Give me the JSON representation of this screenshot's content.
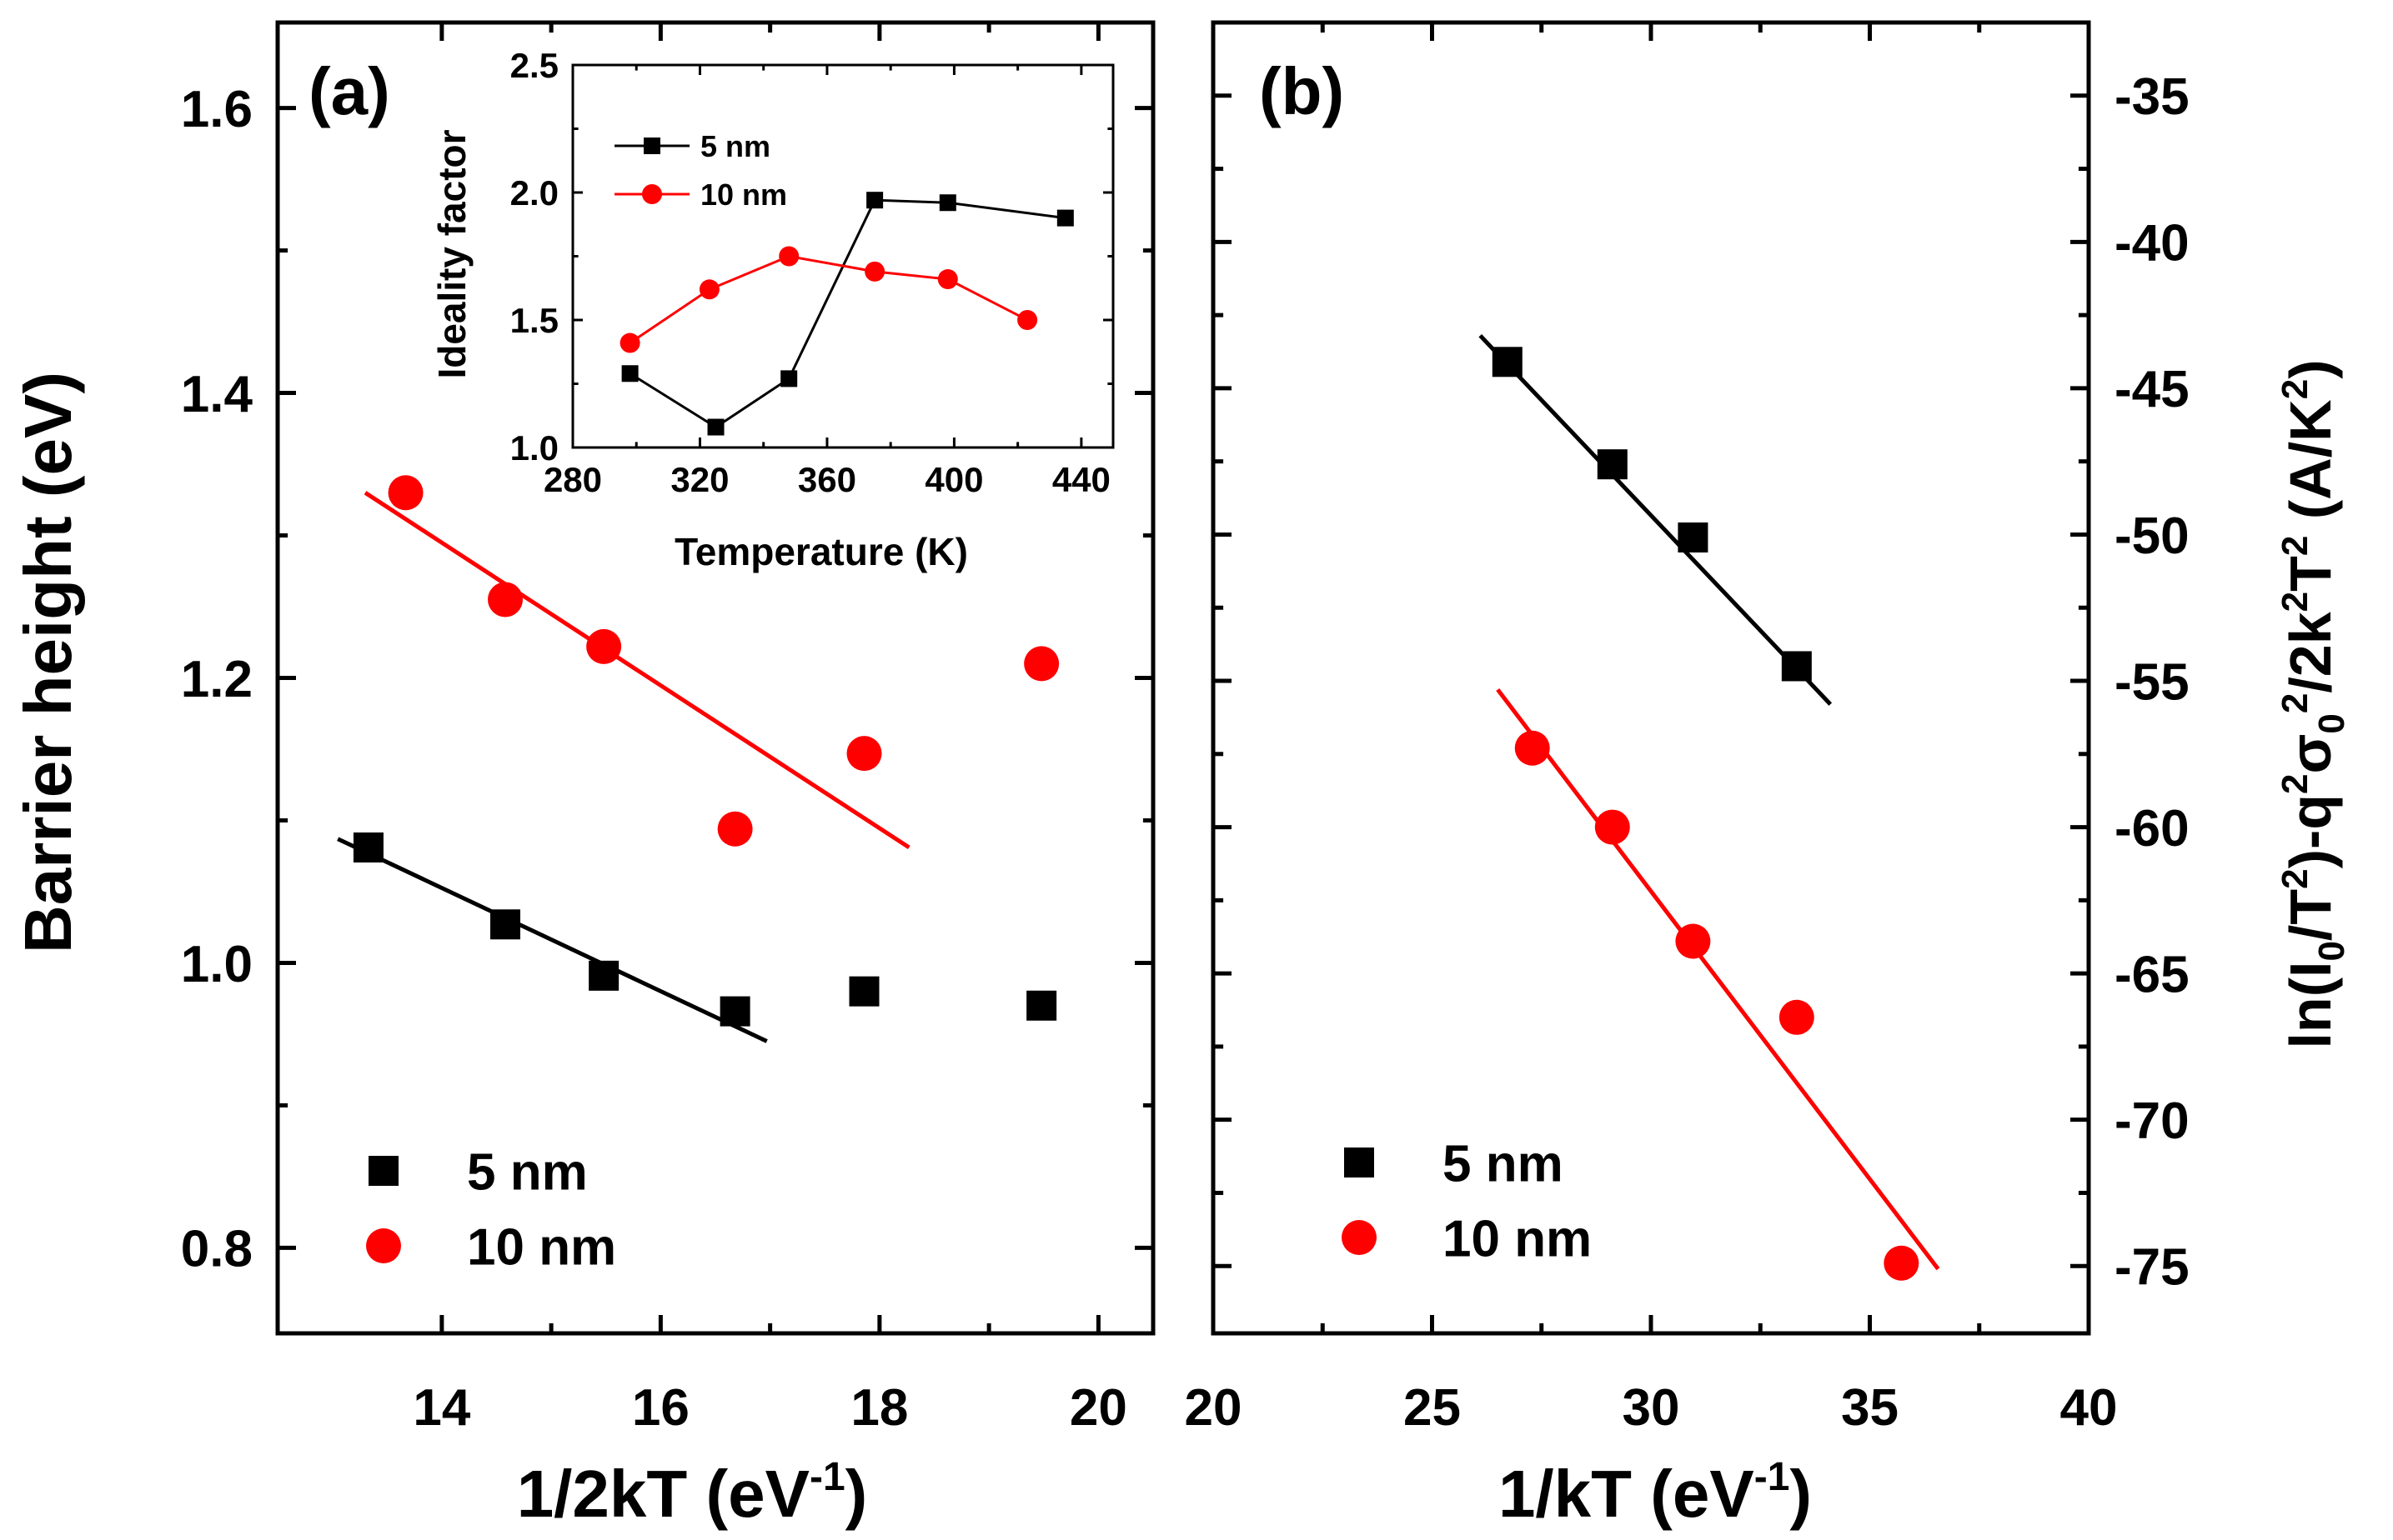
{
  "figure": {
    "panel_a_label": "(a)",
    "panel_b_label": "(b)",
    "panel_a": {
      "ylabel": "Barrier height (eV)",
      "xlabel_main": "1/2kT (eV",
      "xlabel_sup": "-1",
      "xlabel_close": ")"
    },
    "panel_b": {
      "xlabel_main": "1/kT (eV",
      "xlabel_sup": "-1",
      "xlabel_close": ")",
      "ylabel_parts": [
        {
          "t": "ln(I",
          "s": "n"
        },
        {
          "t": "0",
          "s": "sub"
        },
        {
          "t": "/T",
          "s": "n"
        },
        {
          "t": "2",
          "s": "sup"
        },
        {
          "t": ")-q",
          "s": "n"
        },
        {
          "t": "2",
          "s": "sup"
        },
        {
          "t": "σ",
          "s": "n"
        },
        {
          "t": "0",
          "s": "sub"
        },
        {
          "t": "2",
          "s": "sup"
        },
        {
          "t": "/2k",
          "s": "n"
        },
        {
          "t": "2",
          "s": "sup"
        },
        {
          "t": "T",
          "s": "n"
        },
        {
          "t": "2",
          "s": "sup"
        },
        {
          "t": " (A/K",
          "s": "n"
        },
        {
          "t": "2",
          "s": "sup"
        },
        {
          "t": ")",
          "s": "n"
        }
      ]
    },
    "inset": {
      "xlabel": "Temperature (K)",
      "ylabel": "Ideality factor"
    }
  },
  "colors": {
    "black": "#000000",
    "red": "#ff0000"
  },
  "chart_data": [
    {
      "id": "panel_a",
      "type": "scatter",
      "title": "(a)",
      "xlabel": "1/2kT (eV^-1)",
      "ylabel": "Barrier height (eV)",
      "xlim": [
        12.5,
        20.5
      ],
      "ylim": [
        0.74,
        1.66
      ],
      "xticks": [
        14,
        16,
        18,
        20
      ],
      "yticks": [
        0.8,
        1.0,
        1.2,
        1.4,
        1.6
      ],
      "xtick_labels": [
        "14",
        "16",
        "18",
        "20"
      ],
      "ytick_labels": [
        "0.8",
        "1.0",
        "1.2",
        "1.4",
        "1.6"
      ],
      "legend": [
        "5 nm",
        "10 nm"
      ],
      "legend_position": "bottom-left",
      "series": [
        {
          "name": "5 nm",
          "marker": "square",
          "color": "#000000",
          "x": [
            13.33,
            14.58,
            15.48,
            16.68,
            17.86,
            19.48
          ],
          "y": [
            1.081,
            1.027,
            0.991,
            0.966,
            0.98,
            0.97
          ],
          "fit": {
            "x": [
              13.05,
              16.97
            ],
            "y": [
              1.087,
              0.945
            ]
          }
        },
        {
          "name": "10 nm",
          "marker": "circle",
          "color": "#ff0000",
          "x": [
            13.67,
            14.58,
            15.48,
            16.68,
            17.86,
            19.48
          ],
          "y": [
            1.33,
            1.255,
            1.222,
            1.094,
            1.147,
            1.21
          ],
          "fit": {
            "x": [
              13.3,
              18.27
            ],
            "y": [
              1.33,
              1.081
            ]
          }
        }
      ]
    },
    {
      "id": "panel_b",
      "type": "scatter",
      "title": "(b)",
      "xlabel": "1/kT (eV^-1)",
      "ylabel": "ln(I0/T^2)-q^2σ0^2/2k^2T^2 (A/K^2)",
      "xlim": [
        20,
        40
      ],
      "ylim": [
        -77.3,
        -32.5
      ],
      "xticks": [
        20,
        25,
        30,
        35,
        40
      ],
      "yticks": [
        -75,
        -70,
        -65,
        -60,
        -55,
        -50,
        -45,
        -40,
        -35
      ],
      "xtick_labels": [
        "20",
        "25",
        "30",
        "35",
        "40"
      ],
      "ytick_labels": [
        "-75",
        "-70",
        "-65",
        "-60",
        "-55",
        "-50",
        "-45",
        "-40",
        "-35"
      ],
      "yaxis_side": "right",
      "legend": [
        "5 nm",
        "10 nm"
      ],
      "legend_position": "bottom-left",
      "series": [
        {
          "name": "5 nm",
          "marker": "square",
          "color": "#000000",
          "x": [
            26.72,
            29.12,
            30.96,
            33.33
          ],
          "y": [
            -44.1,
            -47.6,
            -50.1,
            -54.5
          ],
          "fit": {
            "x": [
              26.1,
              34.1
            ],
            "y": [
              -43.2,
              -55.8
            ]
          }
        },
        {
          "name": "10 nm",
          "marker": "circle",
          "color": "#ff0000",
          "x": [
            27.29,
            29.12,
            30.96,
            33.33,
            35.72
          ],
          "y": [
            -57.3,
            -60.0,
            -63.9,
            -66.5,
            -74.9
          ],
          "fit": {
            "x": [
              26.5,
              36.56
            ],
            "y": [
              -55.3,
              -75.1
            ]
          }
        }
      ]
    },
    {
      "id": "inset",
      "type": "line",
      "xlabel": "Temperature (K)",
      "ylabel": "Ideality factor",
      "xlim": [
        280,
        450
      ],
      "ylim": [
        1.0,
        2.5
      ],
      "xticks": [
        280,
        320,
        360,
        400,
        440
      ],
      "yticks": [
        1.0,
        1.5,
        2.0,
        2.5
      ],
      "xtick_labels": [
        "280",
        "320",
        "360",
        "400",
        "440"
      ],
      "ytick_labels": [
        "1.0",
        "1.5",
        "2.0",
        "2.5"
      ],
      "legend": [
        "5 nm",
        "10 nm"
      ],
      "legend_position": "top-left",
      "series": [
        {
          "name": "5 nm",
          "marker": "square",
          "color": "#000000",
          "x": [
            298,
            325,
            348,
            375,
            398,
            435
          ],
          "y": [
            1.29,
            1.08,
            1.27,
            1.97,
            1.96,
            1.9
          ]
        },
        {
          "name": "10 nm",
          "marker": "circle",
          "color": "#ff0000",
          "x": [
            298,
            323,
            348,
            375,
            398,
            423
          ],
          "y": [
            1.41,
            1.62,
            1.75,
            1.69,
            1.66,
            1.5
          ]
        }
      ]
    }
  ]
}
